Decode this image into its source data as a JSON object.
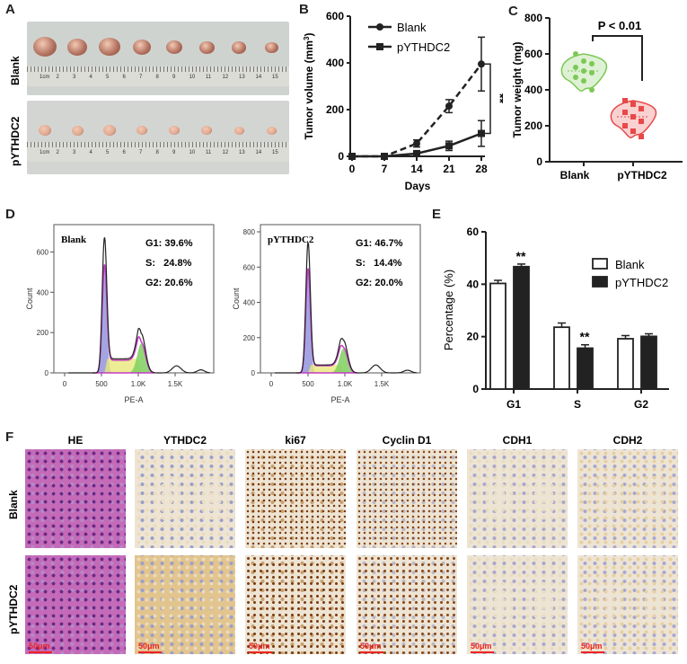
{
  "panels": {
    "A": "A",
    "B": "B",
    "C": "C",
    "D": "D",
    "E": "E",
    "F": "F"
  },
  "panelA": {
    "rows": [
      "Blank",
      "pYTHDC2"
    ],
    "ruler": [
      "1cm",
      "2",
      "3",
      "4",
      "5",
      "6",
      "7",
      "8",
      "9",
      "10",
      "11",
      "12",
      "13",
      "14",
      "15"
    ]
  },
  "panelD": {
    "ylabel": "Count",
    "xlabel": "PE-A",
    "xticks": [
      "0",
      "500",
      "1.0K",
      "1.5K"
    ],
    "plots": [
      {
        "title": "Blank",
        "yticks": [
          "0",
          "200",
          "400",
          "600"
        ],
        "stats": [
          "G1: 39.6%",
          "S:   24.8%",
          "G2: 20.6%"
        ]
      },
      {
        "title": "pYTHDC2",
        "yticks": [
          "0",
          "200",
          "400",
          "600",
          "800"
        ],
        "stats": [
          "G1: 46.7%",
          "S:   14.4%",
          "G2: 20.0%"
        ]
      }
    ]
  },
  "panelF": {
    "columns": [
      "HE",
      "YTHDC2",
      "ki67",
      "Cyclin D1",
      "CDH1",
      "CDH2"
    ],
    "rows": [
      "Blank",
      "pYTHDC2"
    ],
    "scale_bar": "50μm"
  },
  "colors": {
    "blank_c": "#7cc855",
    "pythdc2_c": "#e84848",
    "he": "#7a2f8c",
    "dab": "#7a4015"
  },
  "chart_data": [
    {
      "id": "B",
      "type": "line",
      "xlabel": "Days",
      "ylabel": "Tumor volume (mm3)",
      "x": [
        0,
        7,
        14,
        21,
        28
      ],
      "xticks": [
        "0",
        "7",
        "14",
        "21",
        "28"
      ],
      "ylim": [
        0,
        600
      ],
      "yticks": [
        "0",
        "200",
        "400",
        "600"
      ],
      "series": [
        {
          "name": "Blank",
          "values": [
            0,
            0,
            55,
            215,
            395
          ],
          "errors": [
            5,
            5,
            15,
            28,
            115
          ],
          "style": "dashed",
          "marker": "circle"
        },
        {
          "name": "pYTHDC2",
          "values": [
            0,
            0,
            12,
            45,
            98
          ],
          "errors": [
            3,
            3,
            8,
            20,
            55
          ],
          "style": "solid",
          "marker": "square"
        }
      ],
      "annotation": "**"
    },
    {
      "id": "C",
      "type": "violin",
      "ylabel": "Tumor weight (mg)",
      "categories": [
        "Blank",
        "pYTHDC2"
      ],
      "ylim": [
        0,
        800
      ],
      "yticks": [
        "0",
        "200",
        "400",
        "600",
        "800"
      ],
      "series": [
        {
          "name": "Blank",
          "values": [
            600,
            560,
            545,
            525,
            505,
            495,
            470,
            450,
            400
          ],
          "median": 505
        },
        {
          "name": "pYTHDC2",
          "values": [
            340,
            320,
            295,
            275,
            250,
            225,
            200,
            170,
            140
          ],
          "median": 250
        }
      ],
      "annotation": "P < 0.01"
    },
    {
      "id": "E",
      "type": "bar",
      "ylabel": "Percentage (%)",
      "categories": [
        "G1",
        "S",
        "G2"
      ],
      "ylim": [
        0,
        60
      ],
      "yticks": [
        "0",
        "20",
        "40",
        "60"
      ],
      "legend": "top-right",
      "series": [
        {
          "name": "Blank",
          "values": [
            40.3,
            23.6,
            19.2
          ],
          "errors": [
            1.2,
            1.6,
            1.2
          ]
        },
        {
          "name": "pYTHDC2",
          "values": [
            46.7,
            15.6,
            20.1
          ],
          "errors": [
            1.0,
            1.3,
            1.0
          ]
        }
      ],
      "annotations": [
        "**",
        "**",
        ""
      ]
    }
  ]
}
